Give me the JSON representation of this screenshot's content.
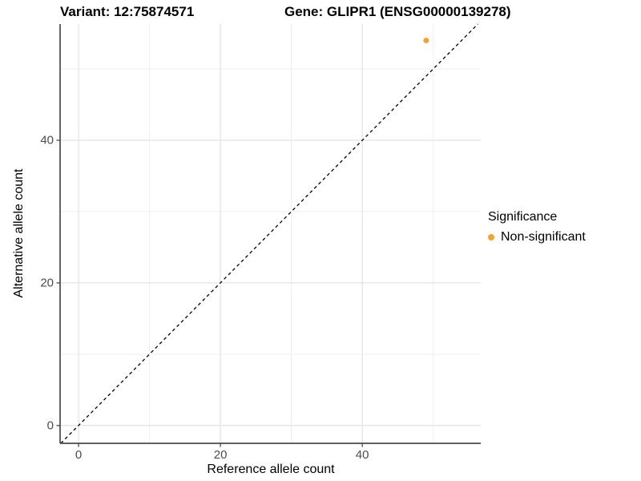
{
  "chart_data": {
    "type": "scatter",
    "title_left": "Variant: 12:75874571",
    "title_right": "Gene: GLIPR1 (ENSG00000139278)",
    "xlabel": "Reference allele count",
    "ylabel": "Alternative allele count",
    "xlim": [
      -2.6,
      56.7
    ],
    "ylim": [
      -2.5,
      56.3
    ],
    "x_major_ticks": [
      0,
      20,
      40
    ],
    "y_major_ticks": [
      0,
      20,
      40
    ],
    "x_minor_ticks": [
      10,
      30,
      50
    ],
    "y_minor_ticks": [
      10,
      30,
      50
    ],
    "grid": true,
    "identity_line": {
      "type": "y=x",
      "style": "dashed",
      "color": "#000000"
    },
    "series": [
      {
        "name": "Non-significant",
        "color": "#F9A02C",
        "points": [
          {
            "x": 49,
            "y": 54
          }
        ]
      }
    ],
    "legend": {
      "title": "Significance",
      "position": "right",
      "entries": [
        {
          "label": "Non-significant",
          "color": "#F9A02C"
        }
      ]
    },
    "style": {
      "panel_bg": "#ffffff",
      "grid_major_color": "#e3e3e3",
      "grid_minor_color": "#efefef",
      "axis_color": "#4a4a4a",
      "tick_color": "#4a4a4a"
    }
  }
}
